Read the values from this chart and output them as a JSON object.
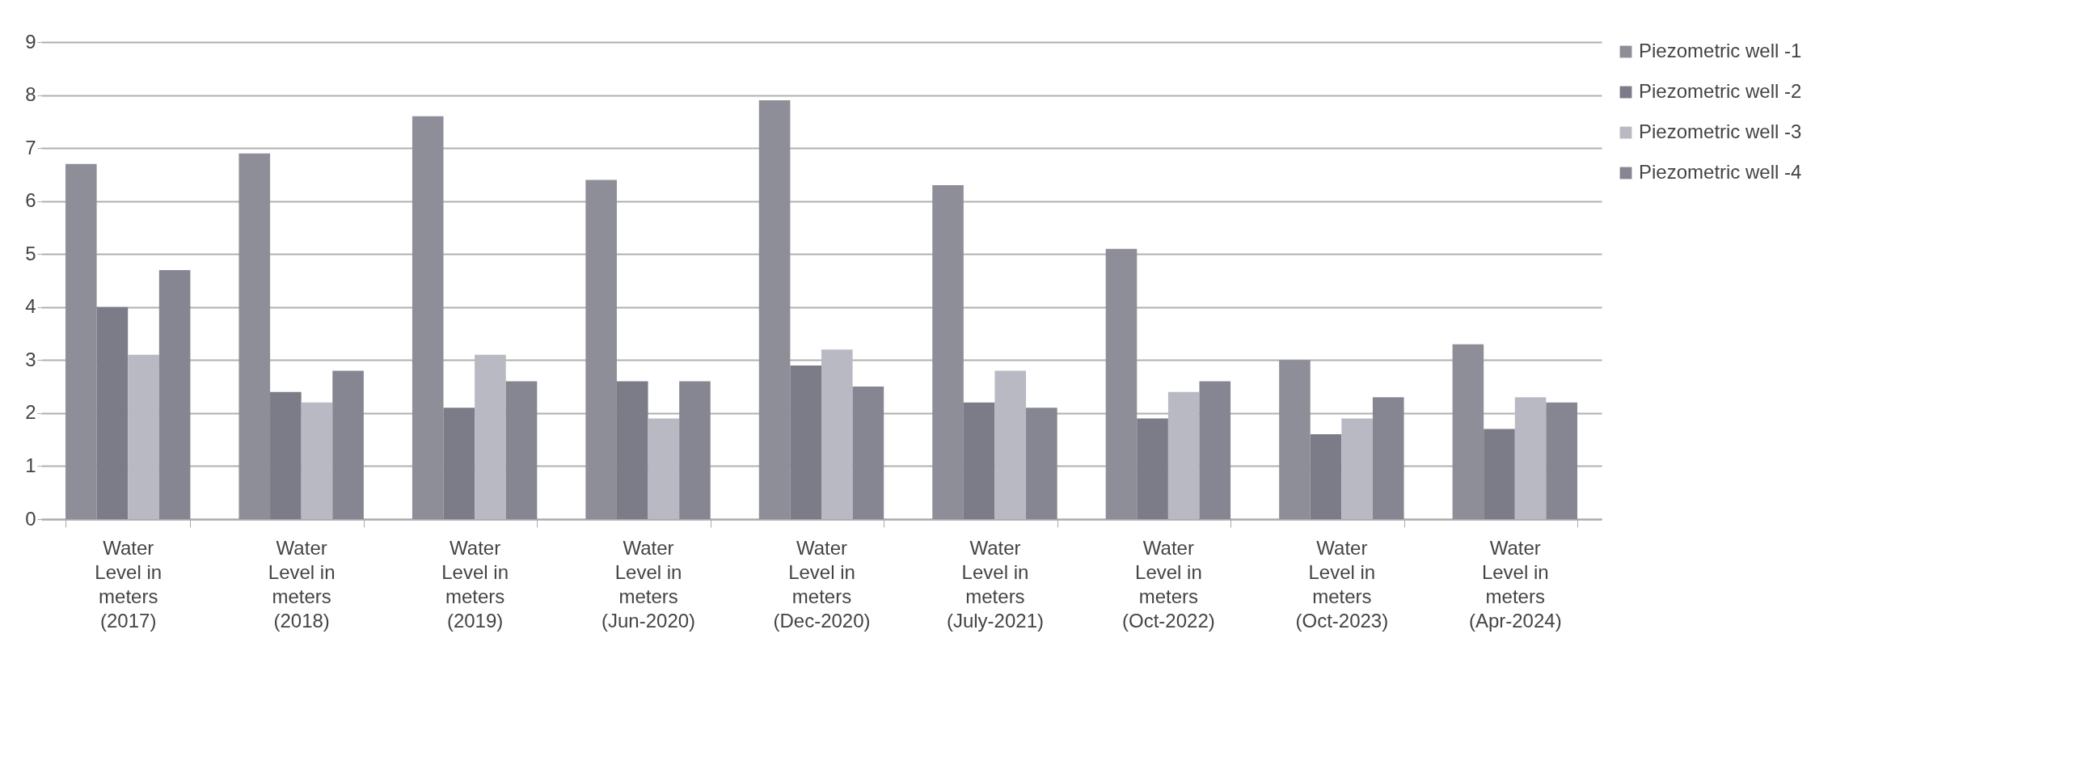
{
  "chart_data": {
    "type": "bar",
    "categories": [
      "Water Level in meters (2017)",
      "Water Level in meters (2018)",
      "Water Level in meters (2019)",
      "Water Level in meters (Jun-2020)",
      "Water Level in meters (Dec-2020)",
      "Water Level in meters (July-2021)",
      "Water Level in meters (Oct-2022)",
      "Water Level in meters (Oct-2023)",
      "Water Level in meters (Apr-2024)"
    ],
    "series": [
      {
        "name": "Piezometric well -1",
        "color": "#8e8e98",
        "values": [
          6.7,
          6.9,
          7.6,
          6.4,
          7.9,
          6.3,
          5.1,
          3.0,
          3.3
        ]
      },
      {
        "name": "Piezometric well -2",
        "color": "#7c7c88",
        "values": [
          4.0,
          2.4,
          2.1,
          2.6,
          2.9,
          2.2,
          1.9,
          1.6,
          1.7
        ]
      },
      {
        "name": "Piezometric well -3",
        "color": "#b9b9c4",
        "values": [
          3.1,
          2.2,
          3.1,
          1.9,
          3.2,
          2.8,
          2.4,
          1.9,
          2.3
        ]
      },
      {
        "name": "Piezometric well -4",
        "color": "#868692",
        "values": [
          4.7,
          2.8,
          2.6,
          2.6,
          2.5,
          2.1,
          2.6,
          2.3,
          2.2
        ]
      }
    ],
    "ylim": [
      0,
      9
    ],
    "yticks": [
      0,
      1,
      2,
      3,
      4,
      5,
      6,
      7,
      8,
      9
    ],
    "grid": "y",
    "legend": "right"
  }
}
